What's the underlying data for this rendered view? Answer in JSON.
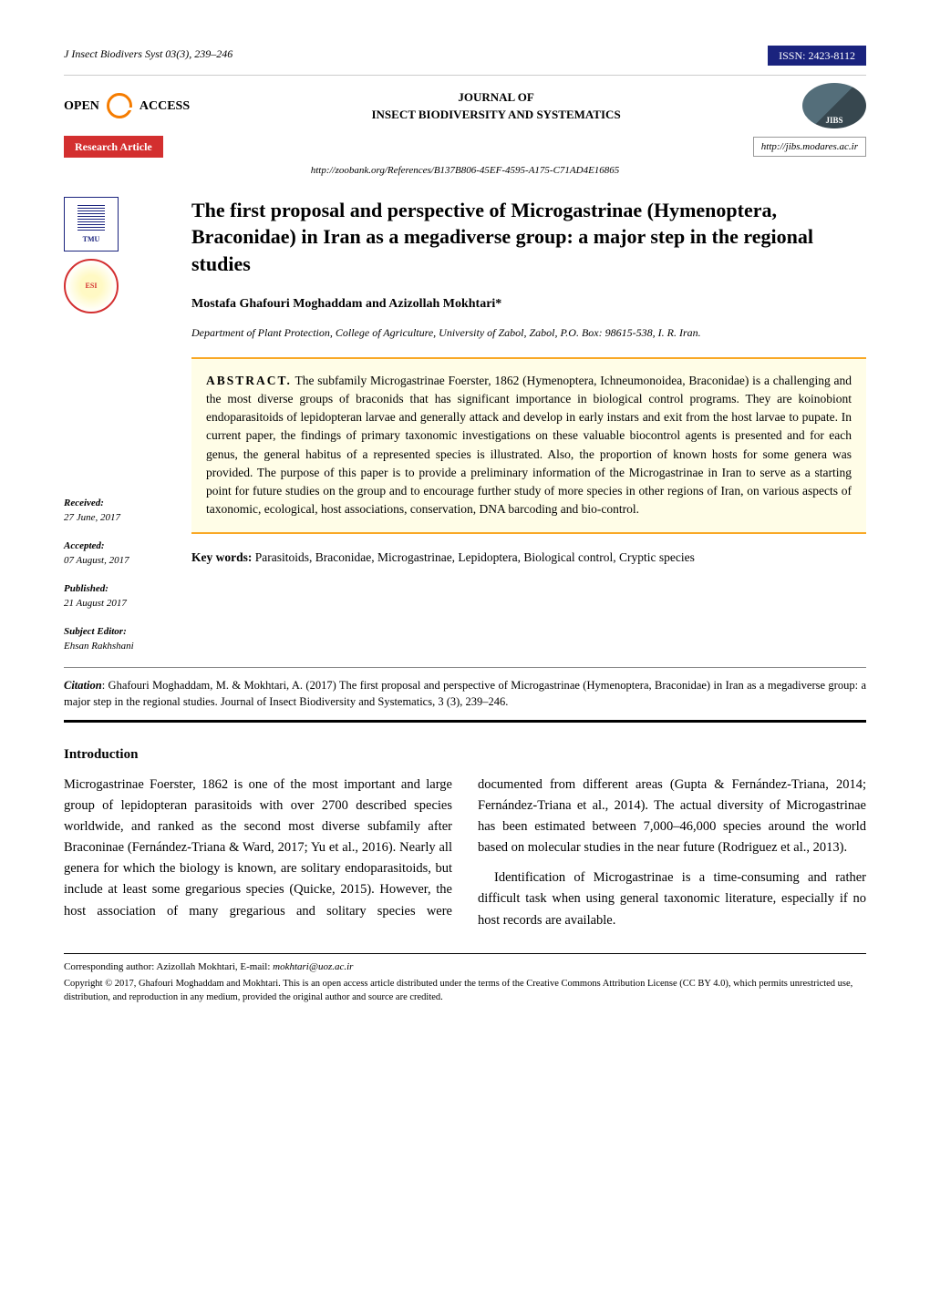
{
  "top": {
    "ref": "J Insect Biodivers Syst 03(3), 239–246",
    "issn": "ISSN: 2423-8112"
  },
  "header": {
    "open_access": "OPEN",
    "access": "ACCESS",
    "journal_line1": "JOURNAL OF",
    "journal_line2": "INSECT BIODIVERSITY AND SYSTEMATICS",
    "jibs": "JIBS"
  },
  "research": {
    "label": "Research Article",
    "url": "http://jibs.modares.ac.ir"
  },
  "zoobank": "http://zoobank.org/References/B137B806-45EF-4595-A175-C71AD4E16865",
  "logos": {
    "tmu": "TMU",
    "esi": "ESI"
  },
  "meta": {
    "received_label": "Received:",
    "received_value": "27 June, 2017",
    "accepted_label": "Accepted:",
    "accepted_value": "07 August, 2017",
    "published_label": "Published:",
    "published_value": "21 August 2017",
    "editor_label": "Subject Editor:",
    "editor_value": "Ehsan Rakhshani"
  },
  "title": "The first proposal and perspective of Microgastrinae (Hymenoptera, Braconidae) in Iran as a megadiverse group: a major step in the regional studies",
  "authors": "Mostafa Ghafouri Moghaddam and Azizollah Mokhtari*",
  "affiliation": "Department of Plant Protection, College of Agriculture, University of Zabol, Zabol, P.O. Box: 98615-538, I. R. Iran.",
  "abstract": {
    "label": "ABSTRACT.",
    "text": " The subfamily Microgastrinae Foerster, 1862 (Hymenoptera, Ichneumonoidea, Braconidae) is a challenging and the most diverse groups of braconids that has significant importance in biological control programs. They are koinobiont endoparasitoids of lepidopteran larvae and generally attack and develop in early instars and exit from the host larvae to pupate. In current paper, the findings of primary taxonomic investigations on these valuable biocontrol agents is presented and for each genus, the general habitus of a represented species is illustrated. Also, the proportion of known hosts for some genera was provided. The purpose of this paper is to provide a preliminary information of the Microgastrinae in Iran to serve as a starting point for future studies on the group and to encourage further study of more species in other regions of Iran, on various aspects of taxonomic, ecological, host associations, conservation, DNA barcoding and bio-control."
  },
  "keywords": {
    "label": "Key words:",
    "text": " Parasitoids, Braconidae, Microgastrinae, Lepidoptera, Biological control, Cryptic species"
  },
  "citation": {
    "label": "Citation",
    "text": ": Ghafouri Moghaddam, M. & Mokhtari, A. (2017) The first proposal and perspective of Microgastrinae (Hymenoptera, Braconidae) in Iran as a megadiverse group: a major step in the regional studies. Journal of Insect Biodiversity and Systematics, 3 (3), 239–246."
  },
  "intro": {
    "heading": "Introduction",
    "p1": "Microgastrinae Foerster, 1862 is one of the most important and large group of lepidopteran parasitoids with over 2700 described species worldwide, and ranked as the second most diverse subfamily after Braconinae (Fernández-Triana & Ward, 2017; Yu et al., 2016). Nearly all genera for which the biology is known, are solitary endoparasitoids, but include at least some gregarious species (Quicke, 2015). However, the host association of many gregarious and solitary species were documented from different areas (Gupta & Fernández-Triana, 2014; Fernández-Triana et al., 2014). The actual diversity of Microgastrinae has been estimated between 7,000–46,000 species around the world based on molecular studies in the near future (Rodriguez et al., 2013).",
    "p2": "Identification of Microgastrinae is a time-consuming and rather difficult task when using general taxonomic literature, especially if no host records are available."
  },
  "footer": {
    "corresponding": "Corresponding author:  Azizollah Mokhtari, E-mail: ",
    "email": "mokhtari@uoz.ac.ir",
    "copyright": "Copyright © 2017, Ghafouri Moghaddam and  Mokhtari. This is an open access article distributed under the terms of the Creative Commons Attribution License (CC BY 4.0), which permits unrestricted use, distribution, and reproduction in any medium, provided the original author and source are credited."
  },
  "colors": {
    "issn_bg": "#1a237e",
    "research_bg": "#d32f2f",
    "abstract_bg": "#fffde7",
    "abstract_border": "#f9a825",
    "oa_orange": "#f57c00"
  }
}
